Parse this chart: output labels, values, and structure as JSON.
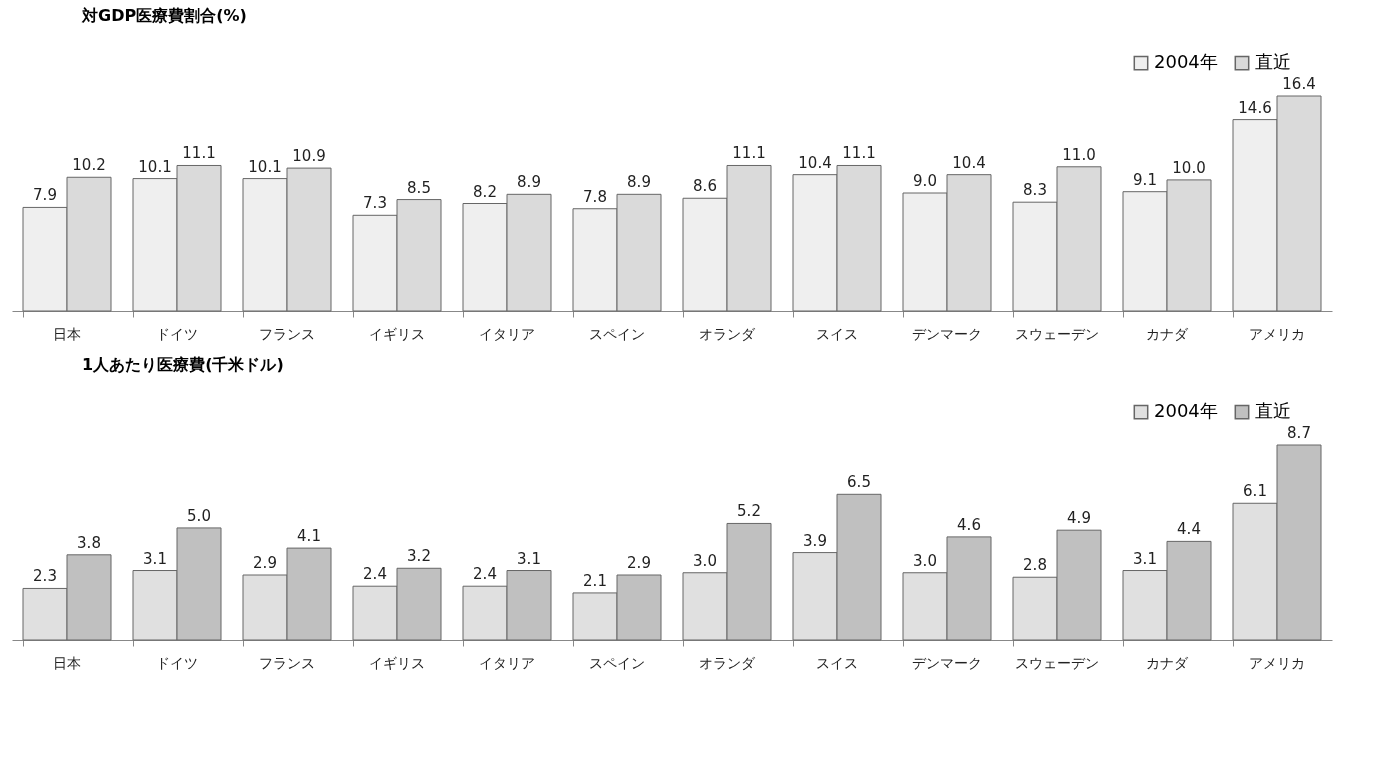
{
  "chart_data": [
    {
      "type": "bar",
      "title": "対GDP医療費割合(%)",
      "categories": [
        "日本",
        "ドイツ",
        "フランス",
        "イギリス",
        "イタリア",
        "スペイン",
        "オランダ",
        "スイス",
        "デンマーク",
        "スウェーデン",
        "カナダ",
        "アメリカ"
      ],
      "series": [
        {
          "name": "2004年",
          "color": "#efefef",
          "values": [
            7.9,
            10.1,
            10.1,
            7.3,
            8.2,
            7.8,
            8.6,
            10.4,
            9.0,
            8.3,
            9.1,
            14.6
          ],
          "value_labels": [
            "7.9",
            "10.1",
            "10.1",
            "7.3",
            "8.2",
            "7.8",
            "8.6",
            "10.4",
            "9.0",
            "8.3",
            "9.1",
            "14.6"
          ]
        },
        {
          "name": "直近",
          "color": "#dadada",
          "values": [
            10.2,
            11.1,
            10.9,
            8.5,
            8.9,
            8.9,
            11.1,
            11.1,
            10.4,
            11.0,
            10.0,
            16.4
          ],
          "value_labels": [
            "10.2",
            "11.1",
            "10.9",
            "8.5",
            "8.9",
            "8.9",
            "11.1",
            "11.1",
            "10.4",
            "11.0",
            "10.0",
            "16.4"
          ]
        }
      ],
      "legend": "top right",
      "tick_labels": "x"
    },
    {
      "type": "bar",
      "title": "1人あたり医療費(千米ドル)",
      "categories": [
        "日本",
        "ドイツ",
        "フランス",
        "イギリス",
        "イタリア",
        "スペイン",
        "オランダ",
        "スイス",
        "デンマーク",
        "スウェーデン",
        "カナダ",
        "アメリカ"
      ],
      "series": [
        {
          "name": "2004年",
          "color": "#e0e0e0",
          "values": [
            2.3,
            3.1,
            2.9,
            2.4,
            2.4,
            2.1,
            3.0,
            3.9,
            3.0,
            2.8,
            3.1,
            6.1
          ],
          "value_labels": [
            "2.3",
            "3.1",
            "2.9",
            "2.4",
            "2.4",
            "2.1",
            "3.0",
            "3.9",
            "3.0",
            "2.8",
            "3.1",
            "6.1"
          ]
        },
        {
          "name": "直近",
          "color": "#c0c0c0",
          "values": [
            3.8,
            5.0,
            4.1,
            3.2,
            3.1,
            2.9,
            5.2,
            6.5,
            4.6,
            4.9,
            4.4,
            8.7
          ],
          "value_labels": [
            "3.8",
            "5.0",
            "4.1",
            "3.2",
            "3.1",
            "2.9",
            "5.2",
            "6.5",
            "4.6",
            "4.9",
            "4.4",
            "8.7"
          ]
        }
      ],
      "legend": "top right",
      "tick_labels": "x"
    }
  ]
}
